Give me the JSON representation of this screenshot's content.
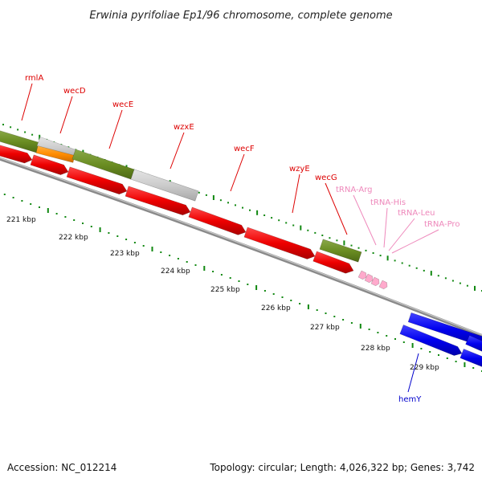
{
  "title": "Erwinia pyrifoliae Ep1/96 chromosome, complete genome",
  "footer": {
    "accession": "Accession: NC_012214",
    "topology": "Topology: circular; Length: 4,026,322 bp; Genes: 3,742"
  },
  "colors": {
    "gene_label_red": "#dd0000",
    "trna_label": "#ee88bb",
    "hemY_label": "#0000cc",
    "tick_green": "#118811",
    "backbone": "#888888"
  },
  "kbp_labels": [
    "221 kbp",
    "222 kbp",
    "223 kbp",
    "224 kbp",
    "225 kbp",
    "226 kbp",
    "227 kbp",
    "228 kbp",
    "229 kbp"
  ],
  "gene_labels": [
    {
      "name": "rmlA",
      "color": "red"
    },
    {
      "name": "wecD",
      "color": "red"
    },
    {
      "name": "wecE",
      "color": "red"
    },
    {
      "name": "wzxE",
      "color": "red"
    },
    {
      "name": "wecF",
      "color": "red"
    },
    {
      "name": "wzyE",
      "color": "red"
    },
    {
      "name": "wecG",
      "color": "red"
    },
    {
      "name": "tRNA-Arg",
      "color": "pink"
    },
    {
      "name": "tRNA-His",
      "color": "pink"
    },
    {
      "name": "tRNA-Leu",
      "color": "pink"
    },
    {
      "name": "tRNA-Pro",
      "color": "pink"
    },
    {
      "name": "hemY",
      "color": "blue"
    }
  ]
}
